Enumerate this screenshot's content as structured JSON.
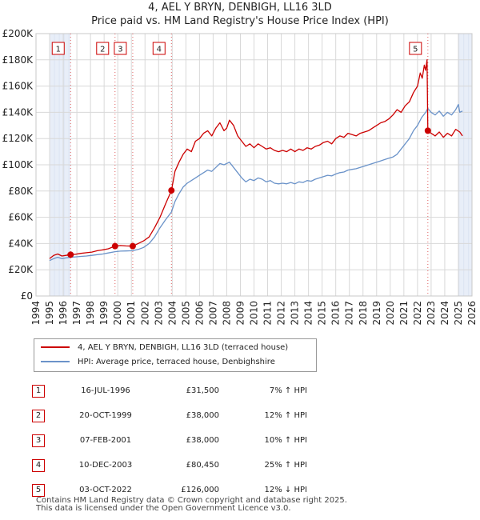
{
  "title_line1": "4, AEL Y BRYN, DENBIGH, LL16 3LD",
  "title_line2": "Price paid vs. HM Land Registry's House Price Index (HPI)",
  "colors": {
    "red": "#cc0000",
    "blue": "#6b93c9",
    "shade": "#e8eef8",
    "grid": "#d8d8d8",
    "vline": "#e06060"
  },
  "chart_data": {
    "type": "line",
    "title": "Price paid vs. HM Land Registry's House Price Index (HPI)",
    "xlim": [
      1994,
      2026
    ],
    "ylim": [
      0,
      200000
    ],
    "y_ticks": [
      {
        "value": 0,
        "label": "£0"
      },
      {
        "value": 20000,
        "label": "£20K"
      },
      {
        "value": 40000,
        "label": "£40K"
      },
      {
        "value": 60000,
        "label": "£60K"
      },
      {
        "value": 80000,
        "label": "£80K"
      },
      {
        "value": 100000,
        "label": "£100K"
      },
      {
        "value": 120000,
        "label": "£120K"
      },
      {
        "value": 140000,
        "label": "£140K"
      },
      {
        "value": 160000,
        "label": "£160K"
      },
      {
        "value": 180000,
        "label": "£180K"
      },
      {
        "value": 200000,
        "label": "£200K"
      }
    ],
    "x_ticks": [
      "1994",
      "1995",
      "1996",
      "1997",
      "1998",
      "1999",
      "2000",
      "2001",
      "2002",
      "2003",
      "2004",
      "2005",
      "2006",
      "2007",
      "2008",
      "2009",
      "2010",
      "2011",
      "2012",
      "2013",
      "2014",
      "2015",
      "2016",
      "2017",
      "2018",
      "2019",
      "2020",
      "2021",
      "2022",
      "2023",
      "2024",
      "2025",
      "2026"
    ],
    "shaded_ranges": [
      [
        1995.0,
        1996.54
      ],
      [
        2025.05,
        2026.0
      ]
    ],
    "series": [
      {
        "name": "4, AEL Y BRYN, DENBIGH, LL16 3LD (terraced house)",
        "color": "#cc0000",
        "points": [
          [
            1995.0,
            28500
          ],
          [
            1995.3,
            31000
          ],
          [
            1995.6,
            32000
          ],
          [
            1995.9,
            30500
          ],
          [
            1996.2,
            31000
          ],
          [
            1996.54,
            31500
          ],
          [
            1996.9,
            31800
          ],
          [
            1997.3,
            32500
          ],
          [
            1997.7,
            33000
          ],
          [
            1998.1,
            33500
          ],
          [
            1998.5,
            34500
          ],
          [
            1998.9,
            35200
          ],
          [
            1999.3,
            36000
          ],
          [
            1999.8,
            38000
          ],
          [
            2000.2,
            38500
          ],
          [
            2000.6,
            38200
          ],
          [
            2001.1,
            38000
          ],
          [
            2001.5,
            40000
          ],
          [
            2001.9,
            42000
          ],
          [
            2002.3,
            45000
          ],
          [
            2002.7,
            52000
          ],
          [
            2003.1,
            60000
          ],
          [
            2003.5,
            70000
          ],
          [
            2003.94,
            80450
          ],
          [
            2004.2,
            95000
          ],
          [
            2004.5,
            102000
          ],
          [
            2004.8,
            108000
          ],
          [
            2005.1,
            112000
          ],
          [
            2005.4,
            110000
          ],
          [
            2005.7,
            118000
          ],
          [
            2006.0,
            120000
          ],
          [
            2006.3,
            124000
          ],
          [
            2006.6,
            126000
          ],
          [
            2006.9,
            122000
          ],
          [
            2007.2,
            128000
          ],
          [
            2007.5,
            132000
          ],
          [
            2007.8,
            126000
          ],
          [
            2008.0,
            128000
          ],
          [
            2008.2,
            134000
          ],
          [
            2008.5,
            130000
          ],
          [
            2008.8,
            122000
          ],
          [
            2009.1,
            118000
          ],
          [
            2009.4,
            114000
          ],
          [
            2009.7,
            116000
          ],
          [
            2010.0,
            113000
          ],
          [
            2010.3,
            116000
          ],
          [
            2010.6,
            114000
          ],
          [
            2010.9,
            112000
          ],
          [
            2011.2,
            113000
          ],
          [
            2011.5,
            111000
          ],
          [
            2011.8,
            110000
          ],
          [
            2012.1,
            111000
          ],
          [
            2012.4,
            110000
          ],
          [
            2012.7,
            112000
          ],
          [
            2013.0,
            110000
          ],
          [
            2013.3,
            112000
          ],
          [
            2013.6,
            111000
          ],
          [
            2013.9,
            113000
          ],
          [
            2014.2,
            112000
          ],
          [
            2014.5,
            114000
          ],
          [
            2014.8,
            115000
          ],
          [
            2015.1,
            117000
          ],
          [
            2015.4,
            118000
          ],
          [
            2015.7,
            116000
          ],
          [
            2016.0,
            120000
          ],
          [
            2016.3,
            122000
          ],
          [
            2016.6,
            121000
          ],
          [
            2016.9,
            124000
          ],
          [
            2017.2,
            123000
          ],
          [
            2017.5,
            122000
          ],
          [
            2017.8,
            124000
          ],
          [
            2018.1,
            125000
          ],
          [
            2018.4,
            126000
          ],
          [
            2018.7,
            128000
          ],
          [
            2019.0,
            130000
          ],
          [
            2019.3,
            132000
          ],
          [
            2019.6,
            133000
          ],
          [
            2019.9,
            135000
          ],
          [
            2020.2,
            138000
          ],
          [
            2020.5,
            142000
          ],
          [
            2020.8,
            140000
          ],
          [
            2021.1,
            145000
          ],
          [
            2021.4,
            148000
          ],
          [
            2021.7,
            155000
          ],
          [
            2022.0,
            160000
          ],
          [
            2022.2,
            170000
          ],
          [
            2022.35,
            166000
          ],
          [
            2022.5,
            176000
          ],
          [
            2022.6,
            172000
          ],
          [
            2022.7,
            180000
          ],
          [
            2022.76,
            126000
          ],
          [
            2023.0,
            124000
          ],
          [
            2023.3,
            122000
          ],
          [
            2023.6,
            125000
          ],
          [
            2023.9,
            121000
          ],
          [
            2024.2,
            124000
          ],
          [
            2024.5,
            122000
          ],
          [
            2024.8,
            127000
          ],
          [
            2025.1,
            125000
          ],
          [
            2025.3,
            122000
          ]
        ]
      },
      {
        "name": "HPI: Average price, terraced house, Denbighshire",
        "color": "#6b93c9",
        "points": [
          [
            1995.0,
            27000
          ],
          [
            1995.3,
            28500
          ],
          [
            1995.6,
            29500
          ],
          [
            1995.9,
            28500
          ],
          [
            1996.2,
            29000
          ],
          [
            1996.54,
            29500
          ],
          [
            1996.9,
            29800
          ],
          [
            1997.3,
            30200
          ],
          [
            1997.7,
            30500
          ],
          [
            1998.1,
            31000
          ],
          [
            1998.5,
            31500
          ],
          [
            1998.9,
            32000
          ],
          [
            1999.3,
            32800
          ],
          [
            1999.8,
            33800
          ],
          [
            2000.2,
            34200
          ],
          [
            2000.6,
            34300
          ],
          [
            2001.1,
            34500
          ],
          [
            2001.5,
            35500
          ],
          [
            2001.9,
            37000
          ],
          [
            2002.3,
            40000
          ],
          [
            2002.7,
            45000
          ],
          [
            2003.1,
            52000
          ],
          [
            2003.5,
            58000
          ],
          [
            2003.94,
            64000
          ],
          [
            2004.2,
            72000
          ],
          [
            2004.5,
            78000
          ],
          [
            2004.8,
            83000
          ],
          [
            2005.1,
            86000
          ],
          [
            2005.4,
            88000
          ],
          [
            2005.7,
            90000
          ],
          [
            2006.0,
            92000
          ],
          [
            2006.3,
            94000
          ],
          [
            2006.6,
            96000
          ],
          [
            2006.9,
            95000
          ],
          [
            2007.2,
            98000
          ],
          [
            2007.5,
            101000
          ],
          [
            2007.8,
            100000
          ],
          [
            2008.0,
            101000
          ],
          [
            2008.2,
            102000
          ],
          [
            2008.5,
            98000
          ],
          [
            2008.8,
            94000
          ],
          [
            2009.1,
            90000
          ],
          [
            2009.4,
            87000
          ],
          [
            2009.7,
            89000
          ],
          [
            2010.0,
            88000
          ],
          [
            2010.3,
            90000
          ],
          [
            2010.6,
            89000
          ],
          [
            2010.9,
            87000
          ],
          [
            2011.2,
            88000
          ],
          [
            2011.5,
            86000
          ],
          [
            2011.8,
            85500
          ],
          [
            2012.1,
            86000
          ],
          [
            2012.4,
            85500
          ],
          [
            2012.7,
            86500
          ],
          [
            2013.0,
            85500
          ],
          [
            2013.3,
            87000
          ],
          [
            2013.6,
            86500
          ],
          [
            2013.9,
            88000
          ],
          [
            2014.2,
            87500
          ],
          [
            2014.5,
            89000
          ],
          [
            2014.8,
            90000
          ],
          [
            2015.1,
            91000
          ],
          [
            2015.4,
            92000
          ],
          [
            2015.7,
            91500
          ],
          [
            2016.0,
            93000
          ],
          [
            2016.3,
            94000
          ],
          [
            2016.6,
            94500
          ],
          [
            2016.9,
            96000
          ],
          [
            2017.2,
            96500
          ],
          [
            2017.5,
            97000
          ],
          [
            2017.8,
            98000
          ],
          [
            2018.1,
            99000
          ],
          [
            2018.4,
            100000
          ],
          [
            2018.7,
            101000
          ],
          [
            2019.0,
            102000
          ],
          [
            2019.3,
            103000
          ],
          [
            2019.6,
            104000
          ],
          [
            2019.9,
            105000
          ],
          [
            2020.2,
            106000
          ],
          [
            2020.5,
            108000
          ],
          [
            2020.8,
            112000
          ],
          [
            2021.1,
            116000
          ],
          [
            2021.4,
            120000
          ],
          [
            2021.7,
            126000
          ],
          [
            2022.0,
            130000
          ],
          [
            2022.3,
            136000
          ],
          [
            2022.6,
            140000
          ],
          [
            2022.76,
            143000
          ],
          [
            2023.0,
            140000
          ],
          [
            2023.3,
            138000
          ],
          [
            2023.6,
            141000
          ],
          [
            2023.9,
            137000
          ],
          [
            2024.2,
            140000
          ],
          [
            2024.5,
            138000
          ],
          [
            2024.8,
            142000
          ],
          [
            2025.0,
            146000
          ],
          [
            2025.1,
            140000
          ],
          [
            2025.3,
            141000
          ]
        ]
      }
    ],
    "transactions": [
      {
        "num": "1",
        "date": "16-JUL-1996",
        "price": "£31,500",
        "hpi": "7% ↑ HPI",
        "x": 1996.54,
        "value": 31500
      },
      {
        "num": "2",
        "date": "20-OCT-1999",
        "price": "£38,000",
        "hpi": "12% ↑ HPI",
        "x": 1999.8,
        "value": 38000
      },
      {
        "num": "3",
        "date": "07-FEB-2001",
        "price": "£38,000",
        "hpi": "10% ↑ HPI",
        "x": 2001.1,
        "value": 38000
      },
      {
        "num": "4",
        "date": "10-DEC-2003",
        "price": "£80,450",
        "hpi": "25% ↑ HPI",
        "x": 2003.94,
        "value": 80450
      },
      {
        "num": "5",
        "date": "03-OCT-2022",
        "price": "£126,000",
        "hpi": "12% ↓ HPI",
        "x": 2022.76,
        "value": 126000
      }
    ]
  },
  "legend": {
    "red_label": "4, AEL Y BRYN, DENBIGH, LL16 3LD (terraced house)",
    "blue_label": "HPI: Average price, terraced house, Denbighshire"
  },
  "footer_line1": "Contains HM Land Registry data © Crown copyright and database right 2025.",
  "footer_line2": "This data is licensed under the Open Government Licence v3.0."
}
